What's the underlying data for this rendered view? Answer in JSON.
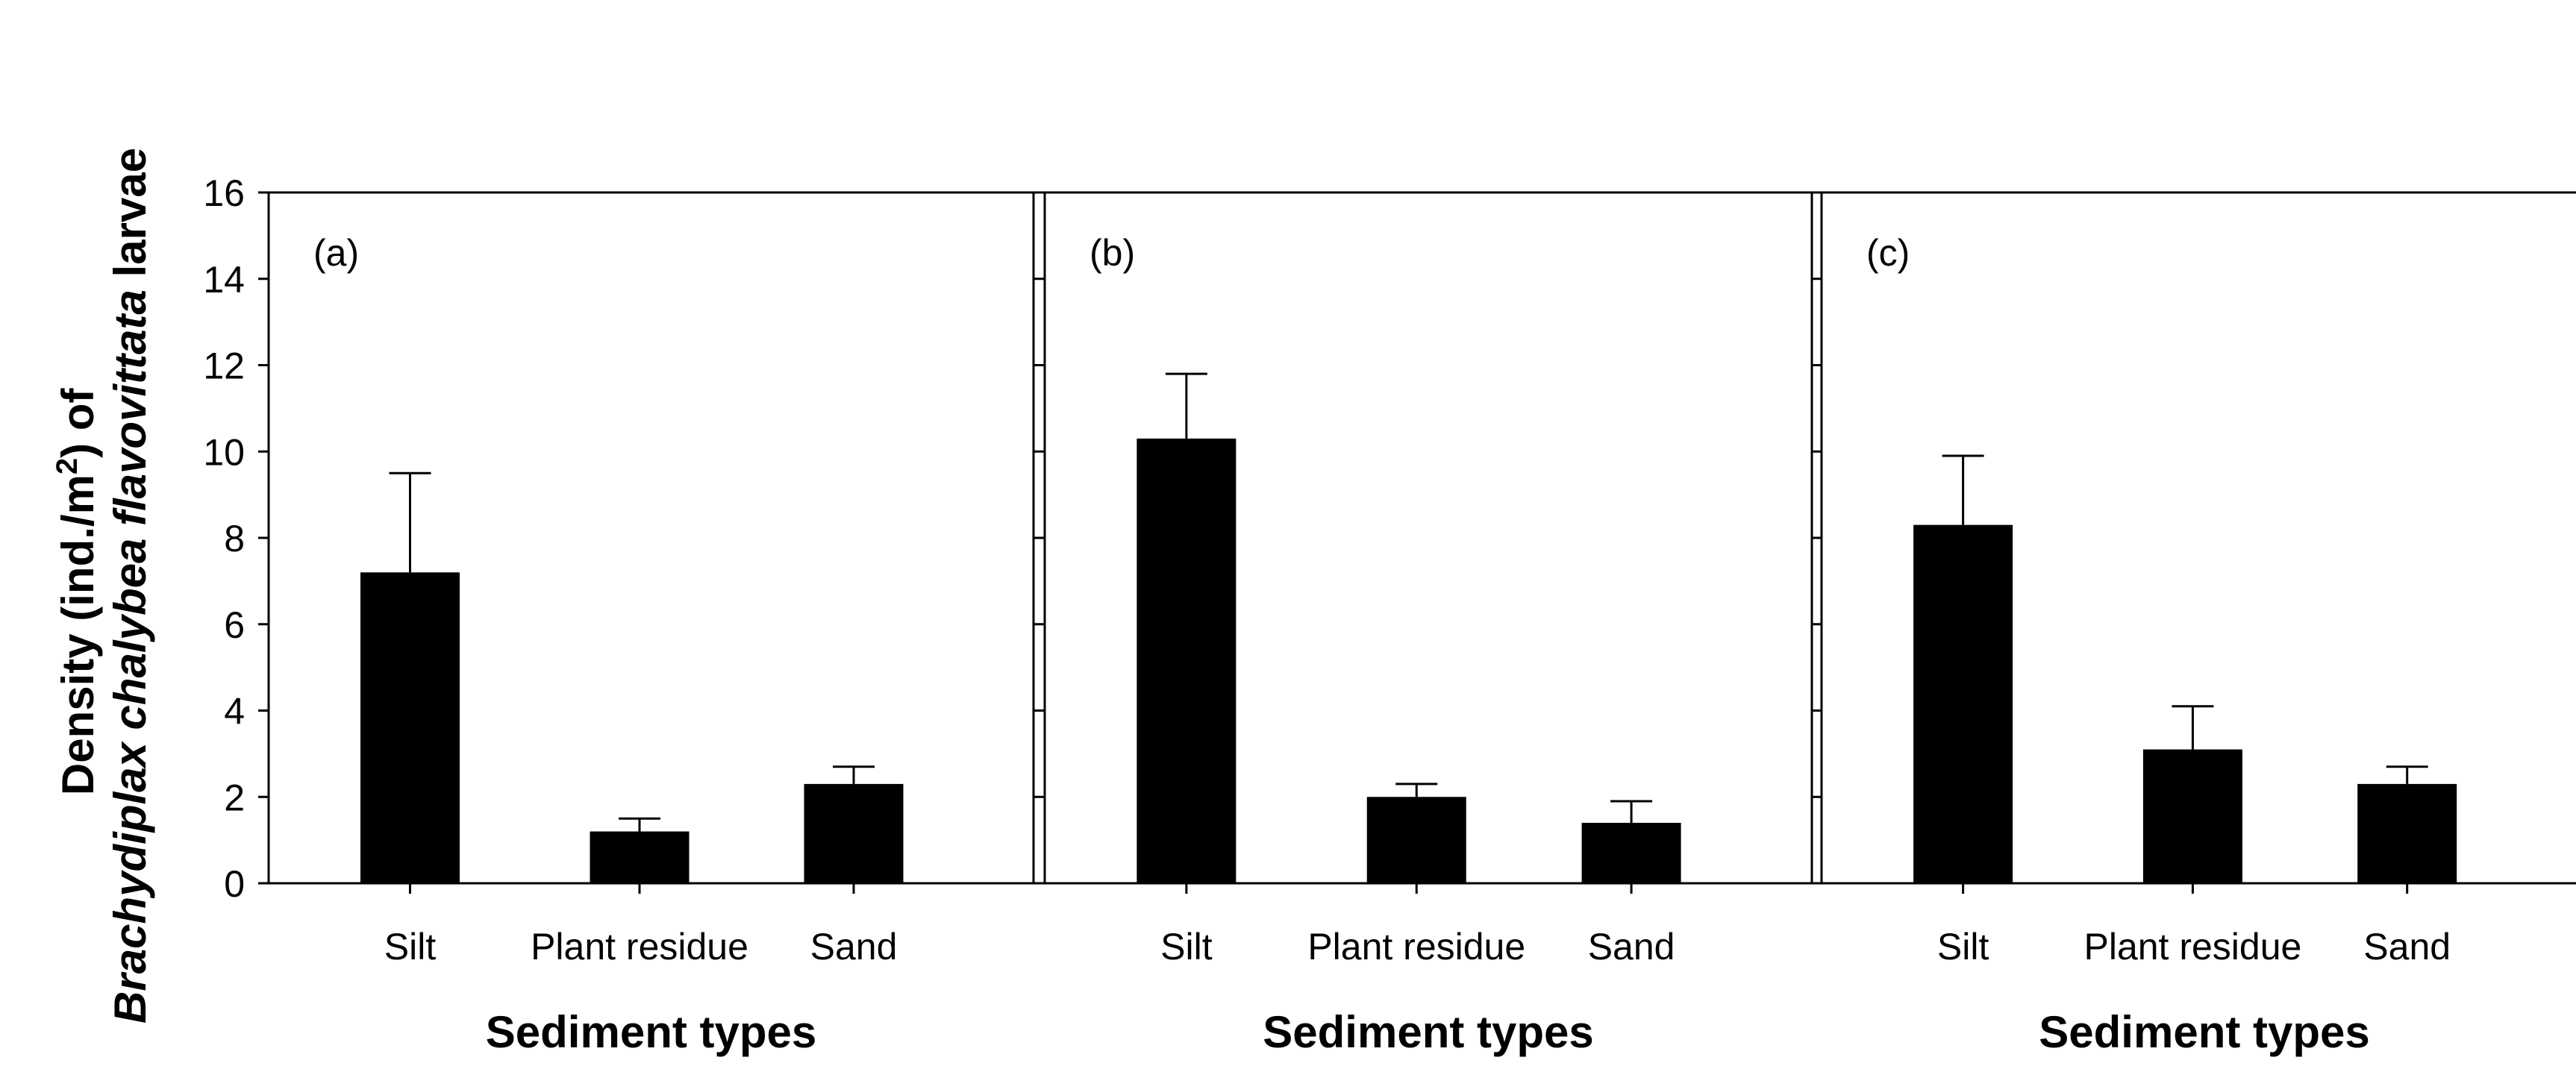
{
  "chart_data": [
    {
      "type": "bar",
      "panel_label": "(a)",
      "categories": [
        "Silt",
        "Plant residue",
        "Sand"
      ],
      "values": [
        7.2,
        1.2,
        2.3
      ],
      "error_upper": [
        2.3,
        0.3,
        0.4
      ],
      "xlabel": "Sediment types",
      "ylim": [
        0,
        16
      ],
      "yticks": [
        "0",
        "2",
        "4",
        "6",
        "8",
        "10",
        "12",
        "14",
        "16"
      ]
    },
    {
      "type": "bar",
      "panel_label": "(b)",
      "categories": [
        "Silt",
        "Plant residue",
        "Sand"
      ],
      "values": [
        10.3,
        2.0,
        1.4
      ],
      "error_upper": [
        1.5,
        0.3,
        0.5
      ],
      "xlabel": "Sediment types",
      "ylim": [
        0,
        16
      ]
    },
    {
      "type": "bar",
      "panel_label": "(c)",
      "categories": [
        "Silt",
        "Plant residue",
        "Sand"
      ],
      "values": [
        8.3,
        3.1,
        2.3
      ],
      "error_upper": [
        1.6,
        1.0,
        0.4
      ],
      "xlabel": "Sediment types",
      "ylim": [
        0,
        16
      ]
    }
  ],
  "ylabel": {
    "line1_prefix": "Density (ind./m",
    "line1_sup": "2",
    "line1_suffix": ") of",
    "line2_species": "Brachydiplax chalybea flavovittata",
    "line2_suffix": " larvae"
  },
  "colors": {
    "bar": "#000000",
    "axis": "#000000",
    "background": "#ffffff"
  }
}
